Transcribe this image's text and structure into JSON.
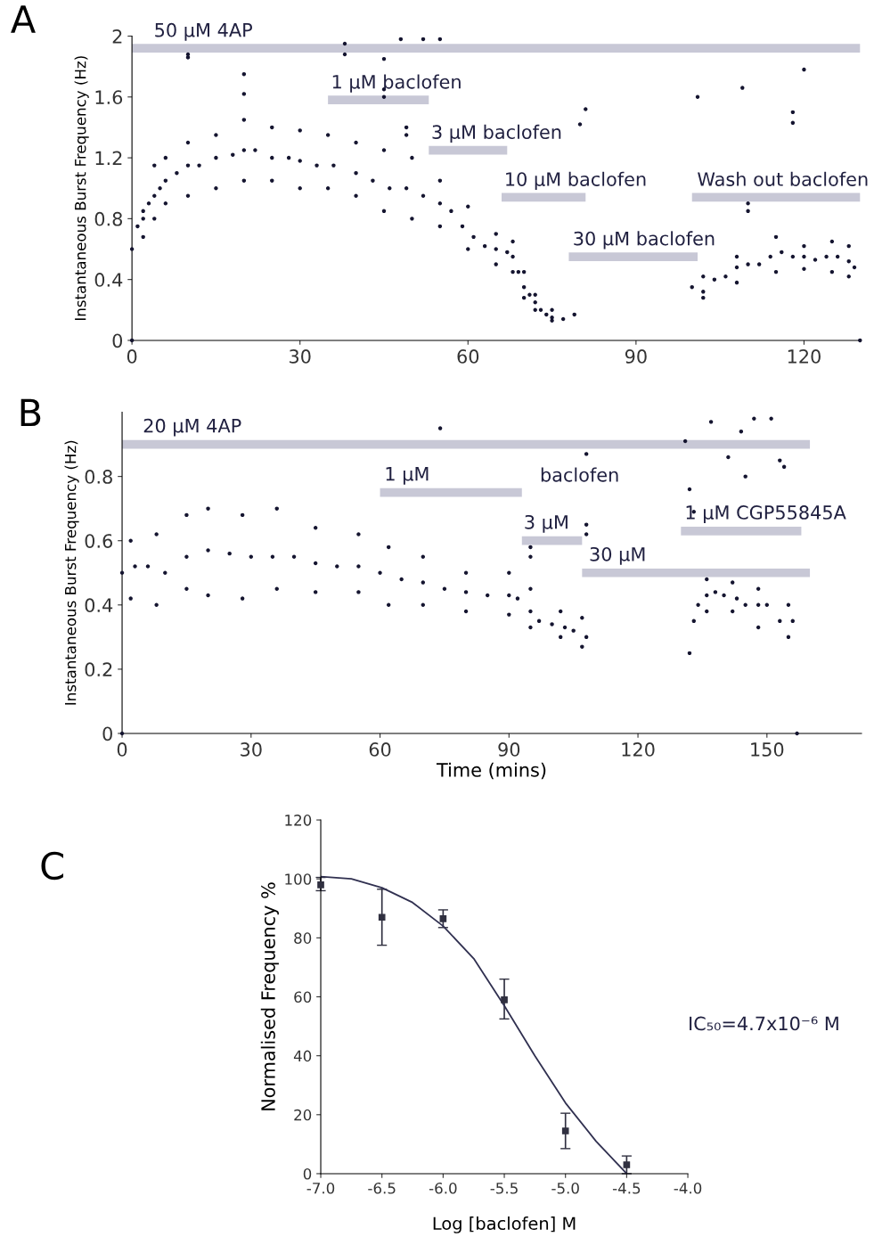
{
  "chart_data": [
    {
      "type": "scatter",
      "title": "A",
      "ylabel": "Instantaneous Burst Frequency (Hz)",
      "xlim": [
        0,
        130
      ],
      "ylim": [
        0,
        2
      ],
      "xticks": [
        0,
        30,
        60,
        90,
        120
      ],
      "yticks": [
        0,
        0.4,
        0.8,
        1.2,
        1.6,
        2
      ],
      "series": [
        {
          "color": "#151530",
          "marker": "circle",
          "x": [
            0,
            1,
            2,
            3,
            4,
            5,
            6,
            8,
            10,
            12,
            15,
            18,
            20,
            22,
            25,
            28,
            30,
            33,
            36,
            40,
            43,
            46,
            49,
            52,
            55,
            57,
            59,
            61,
            63,
            65,
            67,
            68,
            69,
            70,
            71,
            72,
            73,
            74,
            75,
            77,
            79,
            100,
            102,
            104,
            106,
            108,
            110,
            112,
            114,
            116,
            118,
            120,
            122,
            124,
            126,
            128,
            129,
            2,
            4,
            6,
            10,
            15,
            20,
            25,
            30,
            35,
            40,
            45,
            50,
            55,
            60,
            65,
            68,
            70,
            72,
            75,
            102,
            108,
            115,
            120,
            125,
            128,
            2,
            4,
            6,
            10,
            15,
            20,
            25,
            30,
            35,
            40,
            45,
            50,
            55,
            60,
            65,
            68,
            70,
            72,
            75,
            102,
            108,
            115,
            120,
            125,
            128,
            0,
            130,
            10,
            10,
            20,
            20,
            38,
            38,
            45,
            45,
            45,
            48,
            52,
            55,
            49,
            49,
            81,
            80,
            101,
            109,
            118,
            118,
            120,
            110,
            110
          ],
          "values": [
            0.6,
            0.75,
            0.8,
            0.9,
            0.95,
            1.0,
            1.05,
            1.1,
            1.15,
            1.15,
            1.2,
            1.22,
            1.25,
            1.25,
            1.2,
            1.2,
            1.18,
            1.15,
            1.15,
            1.1,
            1.05,
            1.0,
            1.0,
            0.95,
            0.9,
            0.85,
            0.75,
            0.68,
            0.62,
            0.6,
            0.58,
            0.55,
            0.45,
            0.35,
            0.3,
            0.25,
            0.2,
            0.17,
            0.15,
            0.14,
            0.17,
            0.35,
            0.32,
            0.4,
            0.42,
            0.48,
            0.5,
            0.5,
            0.55,
            0.58,
            0.55,
            0.55,
            0.53,
            0.55,
            0.55,
            0.52,
            0.48,
            0.85,
            1.15,
            1.2,
            1.3,
            1.35,
            1.45,
            1.4,
            1.38,
            1.35,
            1.3,
            1.25,
            1.2,
            1.05,
            0.88,
            0.7,
            0.65,
            0.45,
            0.3,
            0.2,
            0.42,
            0.55,
            0.68,
            0.62,
            0.65,
            0.62,
            0.68,
            0.8,
            0.9,
            0.95,
            1.0,
            1.05,
            1.05,
            1.0,
            1.0,
            0.95,
            0.85,
            0.8,
            0.75,
            0.6,
            0.5,
            0.45,
            0.28,
            0.2,
            0.13,
            0.28,
            0.38,
            0.45,
            0.47,
            0.45,
            0.42,
            0,
            0,
            1.88,
            1.86,
            1.75,
            1.62,
            1.95,
            1.88,
            1.85,
            1.65,
            1.6,
            1.98,
            1.98,
            1.98,
            1.4,
            1.35,
            1.52,
            1.42,
            1.6,
            1.66,
            1.5,
            1.43,
            1.78,
            0.9,
            0.85
          ]
        },
        {
          "type": "line",
          "name": "50 µM 4AP",
          "color": "#c8c8d6",
          "line_style": "solid",
          "x": [
            0,
            130
          ],
          "values": [
            1.92,
            1.92
          ]
        },
        {
          "type": "line",
          "name": "1 µM baclofen",
          "color": "#c8c8d6",
          "line_style": "solid",
          "x": [
            35,
            53
          ],
          "values": [
            1.58,
            1.58
          ]
        },
        {
          "type": "line",
          "name": "3 µM baclofen",
          "color": "#c8c8d6",
          "line_style": "solid",
          "x": [
            53,
            67
          ],
          "values": [
            1.25,
            1.25
          ]
        },
        {
          "type": "line",
          "name": "10 µM baclofen",
          "color": "#c8c8d6",
          "line_style": "solid",
          "x": [
            66,
            81
          ],
          "values": [
            0.94,
            0.94
          ]
        },
        {
          "type": "line",
          "name": "30 µM baclofen",
          "color": "#c8c8d6",
          "line_style": "solid",
          "x": [
            78,
            101
          ],
          "values": [
            0.55,
            0.55
          ]
        },
        {
          "type": "line",
          "name": "Wash out baclofen",
          "color": "#c8c8d6",
          "line_style": "solid",
          "x": [
            100,
            130
          ],
          "values": [
            0.94,
            0.94
          ]
        }
      ]
    },
    {
      "type": "scatter",
      "title": "B",
      "xlabel": "Time (mins)",
      "ylabel": "Instantaneous Burst Frequency (Hz)",
      "xlim": [
        0,
        172
      ],
      "ylim": [
        0,
        1
      ],
      "xticks": [
        0,
        30,
        60,
        90,
        120,
        150
      ],
      "yticks": [
        0,
        0.2,
        0.4,
        0.6,
        0.8
      ],
      "annotations": [
        "baclofen"
      ],
      "series": [
        {
          "color": "#151530",
          "marker": "circle",
          "x": [
            0,
            3,
            6,
            10,
            15,
            20,
            25,
            30,
            35,
            40,
            45,
            50,
            55,
            60,
            65,
            70,
            75,
            80,
            85,
            90,
            92,
            95,
            97,
            100,
            103,
            105,
            108,
            132,
            133,
            134,
            136,
            138,
            140,
            143,
            145,
            148,
            150,
            153,
            156,
            2,
            8,
            15,
            20,
            28,
            36,
            45,
            55,
            62,
            70,
            80,
            90,
            95,
            102,
            107,
            136,
            142,
            148,
            155,
            2,
            8,
            15,
            20,
            28,
            36,
            45,
            55,
            62,
            70,
            80,
            90,
            95,
            102,
            107,
            136,
            142,
            148,
            155,
            74,
            108,
            132,
            137,
            141,
            144,
            145,
            147,
            151,
            153,
            154,
            133,
            131,
            95,
            95,
            108,
            108,
            0,
            157
          ],
          "values": [
            0.5,
            0.52,
            0.52,
            0.5,
            0.55,
            0.57,
            0.56,
            0.55,
            0.55,
            0.55,
            0.53,
            0.52,
            0.52,
            0.5,
            0.48,
            0.47,
            0.45,
            0.44,
            0.43,
            0.43,
            0.42,
            0.38,
            0.35,
            0.34,
            0.33,
            0.32,
            0.3,
            0.25,
            0.35,
            0.4,
            0.43,
            0.44,
            0.43,
            0.42,
            0.4,
            0.4,
            0.4,
            0.35,
            0.35,
            0.6,
            0.62,
            0.68,
            0.7,
            0.68,
            0.7,
            0.64,
            0.62,
            0.58,
            0.55,
            0.5,
            0.5,
            0.45,
            0.38,
            0.36,
            0.48,
            0.47,
            0.45,
            0.4,
            0.42,
            0.4,
            0.45,
            0.43,
            0.42,
            0.45,
            0.44,
            0.44,
            0.4,
            0.4,
            0.38,
            0.37,
            0.33,
            0.3,
            0.27,
            0.38,
            0.38,
            0.33,
            0.3,
            0.95,
            0.87,
            0.76,
            0.97,
            0.86,
            0.94,
            0.8,
            0.98,
            0.98,
            0.85,
            0.83,
            0.69,
            0.91,
            0.58,
            0.55,
            0.65,
            0.62,
            0,
            0
          ]
        },
        {
          "type": "line",
          "name": "20 µM 4AP",
          "color": "#c8c8d6",
          "line_style": "solid",
          "x": [
            0,
            160
          ],
          "values": [
            0.9,
            0.9
          ]
        },
        {
          "type": "line",
          "name": "1 µM",
          "color": "#c8c8d6",
          "line_style": "solid",
          "x": [
            60,
            93
          ],
          "values": [
            0.75,
            0.75
          ]
        },
        {
          "type": "line",
          "name": "3 µM",
          "color": "#c8c8d6",
          "line_style": "solid",
          "x": [
            93,
            107
          ],
          "values": [
            0.6,
            0.6
          ]
        },
        {
          "type": "line",
          "name": "30 µM",
          "color": "#c8c8d6",
          "line_style": "solid",
          "x": [
            107,
            160
          ],
          "values": [
            0.5,
            0.5
          ]
        },
        {
          "type": "line",
          "name": "1 µM CGP55845A",
          "color": "#c8c8d6",
          "line_style": "solid",
          "x": [
            130,
            158
          ],
          "values": [
            0.63,
            0.63
          ]
        }
      ]
    },
    {
      "type": "scatter",
      "title": "C",
      "xlabel": "Log [baclofen] M",
      "ylabel": "Normalised Frequency %",
      "xlim": [
        -7,
        -4
      ],
      "ylim": [
        0,
        120
      ],
      "xticks": [
        {
          "value": -7,
          "label": "-7.0"
        },
        {
          "value": -6.5,
          "label": "-6.5"
        },
        {
          "value": -6,
          "label": "-6.0"
        },
        {
          "value": -5.5,
          "label": "-5.5"
        },
        {
          "value": -5,
          "label": "-5.0"
        },
        {
          "value": -4.5,
          "label": "-4.5"
        },
        {
          "value": -4,
          "label": "-4.0"
        }
      ],
      "yticks": [
        0,
        20,
        40,
        60,
        80,
        100,
        120
      ],
      "annotations": [
        "IC₅₀=4.7x10⁻⁶ M"
      ],
      "series": [
        {
          "color": "#303040",
          "marker": "square",
          "x": [
            -7,
            -6.5,
            -6,
            -5.5,
            -5,
            -4.5
          ],
          "values": [
            98,
            87,
            86.5,
            59,
            14.5,
            3
          ],
          "errors": [
            [
              96,
              100.5
            ],
            [
              77.5,
              96.5
            ],
            [
              83.5,
              89.5
            ],
            [
              52.5,
              66
            ],
            [
              8.5,
              20.5
            ],
            [
              0,
              6
            ]
          ]
        },
        {
          "type": "line",
          "color": "#303050",
          "line_style": "solid",
          "x": [
            -7,
            -6.75,
            -6.5,
            -6.25,
            -6,
            -5.75,
            -5.5,
            -5.25,
            -5,
            -4.75,
            -4.5
          ],
          "values": [
            100.8,
            100,
            97,
            92,
            84,
            73,
            57,
            40,
            24,
            11,
            0
          ]
        }
      ]
    }
  ]
}
